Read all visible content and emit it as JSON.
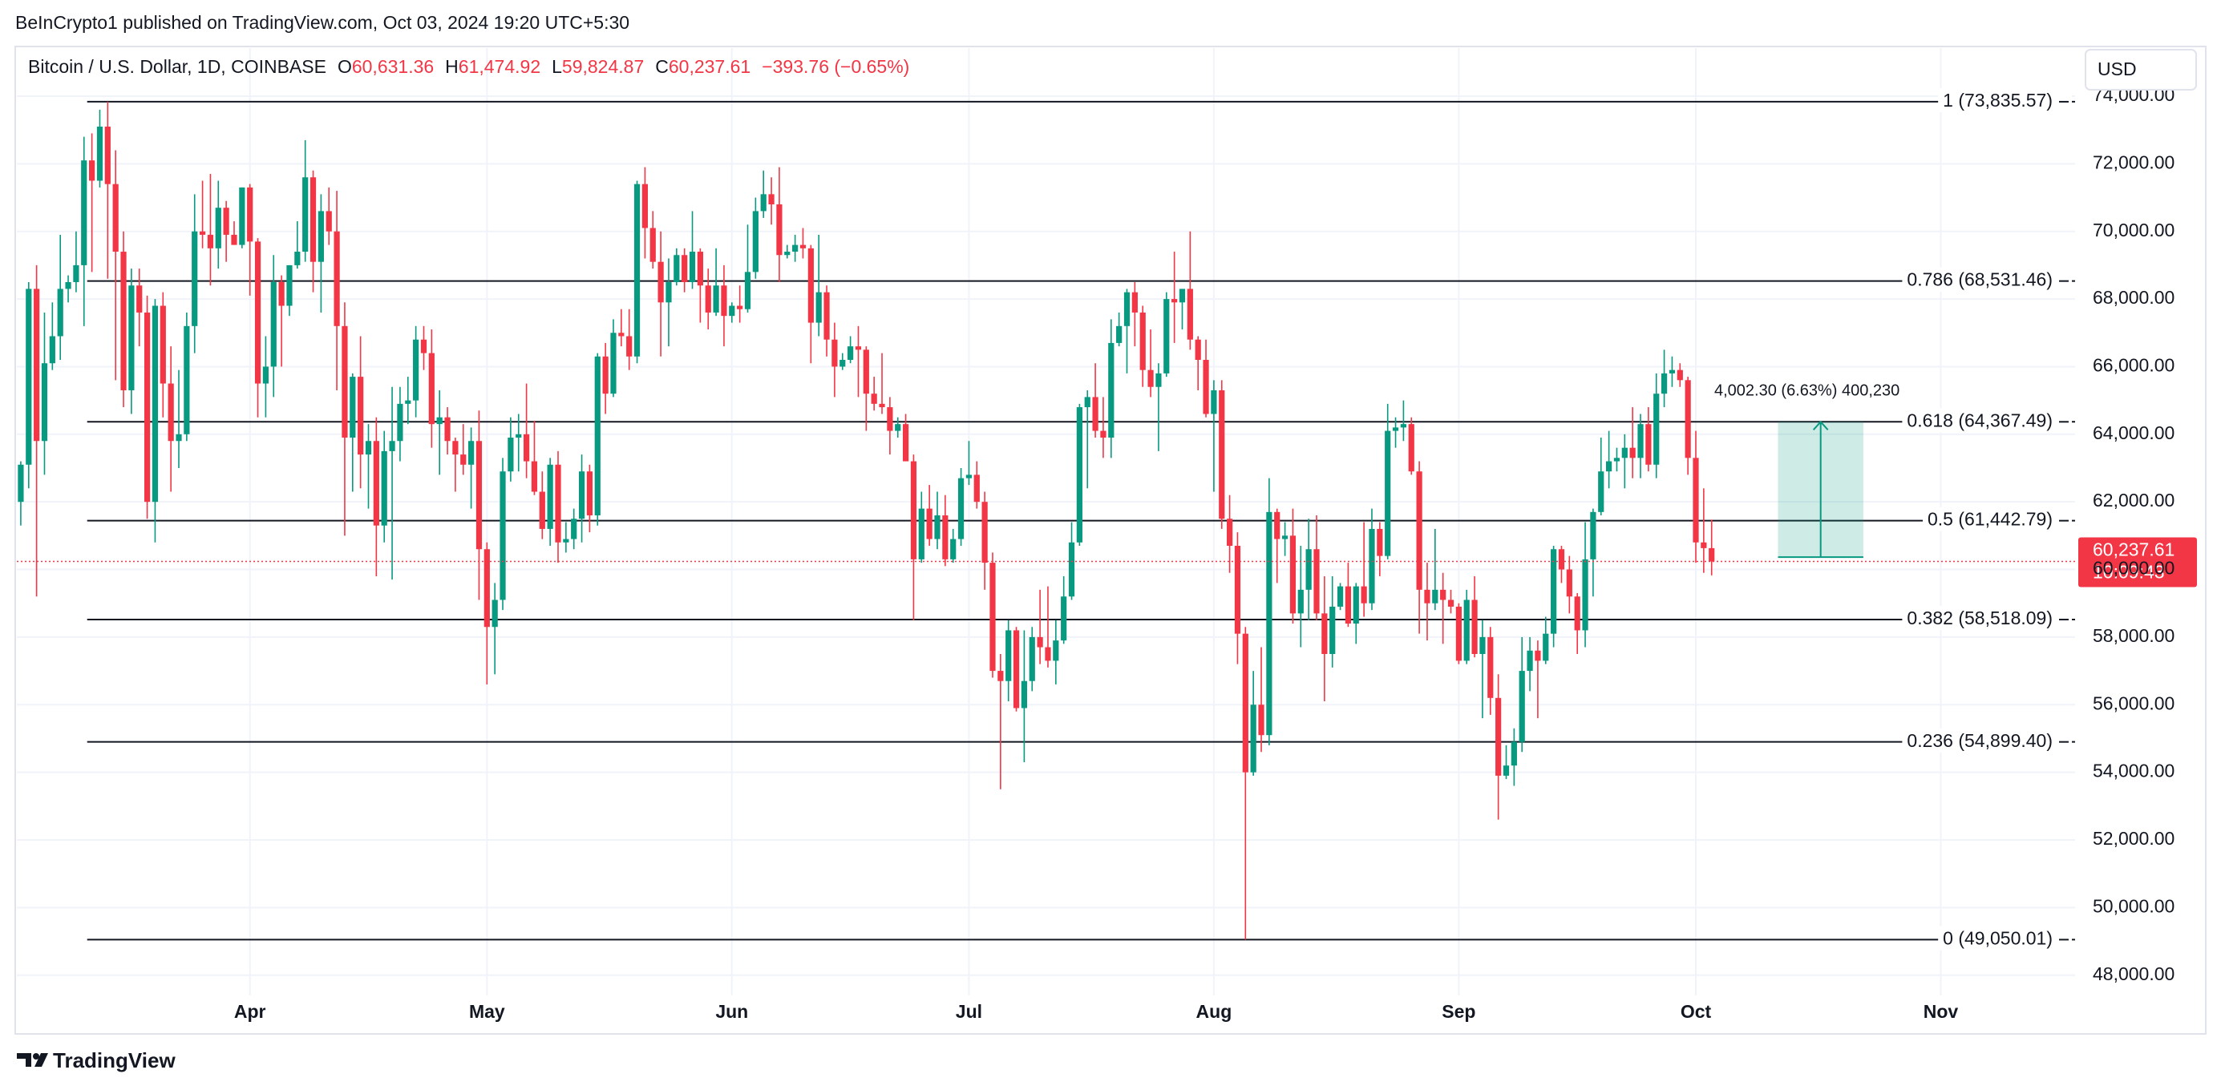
{
  "header": {
    "text": "BeInCrypto1 published on TradingView.com, Oct 03, 2024 19:20 UTC+5:30"
  },
  "chart_data": {
    "type": "candlestick",
    "symbol": "Bitcoin / U.S. Dollar, 1D, COINBASE",
    "ohlc_legend": [
      {
        "key": "O",
        "value": "60,631.36"
      },
      {
        "key": "H",
        "value": "61,474.92"
      },
      {
        "key": "L",
        "value": "59,824.87"
      },
      {
        "key": "C",
        "value": "60,237.61"
      }
    ],
    "change": "−393.76 (−0.65%)",
    "currency": "USD",
    "up_color": "#089981",
    "down_color": "#f23645",
    "grid": true,
    "xlim": [
      -0.5,
      260
    ],
    "xticks": [
      {
        "value": 29,
        "label": "Apr"
      },
      {
        "value": 59,
        "label": "May"
      },
      {
        "value": 90,
        "label": "Jun"
      },
      {
        "value": 120,
        "label": "Jul"
      },
      {
        "value": 151,
        "label": "Aug"
      },
      {
        "value": 182,
        "label": "Sep"
      },
      {
        "value": 212,
        "label": "Oct"
      },
      {
        "value": 243,
        "label": "Nov"
      }
    ],
    "ylim": [
      47400,
      74000
    ],
    "yticks": [
      {
        "value": 48000,
        "label": "48,000.00"
      },
      {
        "value": 50000,
        "label": "50,000.00"
      },
      {
        "value": 52000,
        "label": "52,000.00"
      },
      {
        "value": 54000,
        "label": "54,000.00"
      },
      {
        "value": 56000,
        "label": "56,000.00"
      },
      {
        "value": 58000,
        "label": "58,000.00"
      },
      {
        "value": 60000,
        "label": "60,000.00"
      },
      {
        "value": 62000,
        "label": "62,000.00"
      },
      {
        "value": 64000,
        "label": "64,000.00"
      },
      {
        "value": 66000,
        "label": "66,000.00"
      },
      {
        "value": 68000,
        "label": "68,000.00"
      },
      {
        "value": 70000,
        "label": "70,000.00"
      },
      {
        "value": 72000,
        "label": "72,000.00"
      },
      {
        "value": 74000,
        "label": "74,000.00"
      }
    ],
    "candles": [
      [
        62000,
        63200,
        61300,
        63100
      ],
      [
        63100,
        68500,
        62400,
        68300
      ],
      [
        68300,
        69000,
        59200,
        63800
      ],
      [
        63800,
        67600,
        62800,
        66100
      ],
      [
        66100,
        67900,
        65900,
        66900
      ],
      [
        66900,
        69900,
        66200,
        68300
      ],
      [
        68300,
        68700,
        67900,
        68500
      ],
      [
        68500,
        70000,
        68200,
        69000
      ],
      [
        69000,
        72800,
        67200,
        72100
      ],
      [
        72100,
        72900,
        68800,
        71500
      ],
      [
        71500,
        73600,
        71300,
        73100
      ],
      [
        73100,
        73835.57,
        68600,
        71400
      ],
      [
        71400,
        72400,
        65600,
        69400
      ],
      [
        69400,
        70000,
        64800,
        65300
      ],
      [
        65300,
        68900,
        64600,
        68400
      ],
      [
        68400,
        68900,
        66600,
        67600
      ],
      [
        67600,
        68100,
        61500,
        62000
      ],
      [
        62000,
        68000,
        60800,
        67800
      ],
      [
        67800,
        68200,
        64500,
        65500
      ],
      [
        65500,
        66600,
        62300,
        63800
      ],
      [
        63800,
        65900,
        63000,
        64000
      ],
      [
        64000,
        67600,
        63800,
        67200
      ],
      [
        67200,
        71100,
        66400,
        70000
      ],
      [
        70000,
        71500,
        69500,
        69900
      ],
      [
        69900,
        71700,
        68400,
        69500
      ],
      [
        69500,
        71500,
        68900,
        70700
      ],
      [
        70700,
        70900,
        69100,
        69900
      ],
      [
        69900,
        70300,
        69600,
        69600
      ],
      [
        69600,
        71300,
        69500,
        71300
      ],
      [
        71300,
        71400,
        68100,
        69700
      ],
      [
        69700,
        69800,
        64500,
        65500
      ],
      [
        65500,
        66900,
        64500,
        66000
      ],
      [
        66000,
        69300,
        65100,
        68500
      ],
      [
        68500,
        68700,
        66000,
        67800
      ],
      [
        67800,
        69000,
        67500,
        69000
      ],
      [
        69000,
        70300,
        68900,
        69400
      ],
      [
        69400,
        72700,
        69100,
        71600
      ],
      [
        71600,
        71800,
        68200,
        69100
      ],
      [
        69100,
        71100,
        67600,
        70600
      ],
      [
        70600,
        71300,
        69600,
        70000
      ],
      [
        70000,
        71200,
        65300,
        67200
      ],
      [
        67200,
        67900,
        61000,
        63900
      ],
      [
        63900,
        65800,
        62300,
        65700
      ],
      [
        65700,
        66900,
        62400,
        63400
      ],
      [
        63400,
        64300,
        61800,
        63800
      ],
      [
        63800,
        64500,
        59800,
        61300
      ],
      [
        61300,
        64100,
        60800,
        63500
      ],
      [
        63500,
        65400,
        59700,
        63800
      ],
      [
        63800,
        65400,
        63200,
        64900
      ],
      [
        64900,
        65700,
        64300,
        65000
      ],
      [
        65000,
        67200,
        64500,
        66800
      ],
      [
        66800,
        67200,
        65900,
        66400
      ],
      [
        66400,
        67100,
        63600,
        64300
      ],
      [
        64300,
        65300,
        62800,
        64500
      ],
      [
        64500,
        64800,
        63400,
        63800
      ],
      [
        63800,
        63900,
        62300,
        63400
      ],
      [
        63400,
        64300,
        62800,
        63100
      ],
      [
        63100,
        64200,
        61800,
        63800
      ],
      [
        63800,
        64700,
        59100,
        60600
      ],
      [
        60600,
        60800,
        56600,
        58300
      ],
      [
        58300,
        59600,
        56900,
        59100
      ],
      [
        59100,
        63300,
        58800,
        62900
      ],
      [
        62900,
        64500,
        62600,
        63900
      ],
      [
        63900,
        64600,
        62900,
        64000
      ],
      [
        64000,
        65500,
        62700,
        63200
      ],
      [
        63200,
        64400,
        62200,
        62300
      ],
      [
        62300,
        62900,
        60900,
        61200
      ],
      [
        61200,
        63300,
        60700,
        63100
      ],
      [
        63100,
        63500,
        60200,
        60800
      ],
      [
        60800,
        61400,
        60500,
        60900
      ],
      [
        60900,
        61800,
        60600,
        61500
      ],
      [
        61500,
        63400,
        60800,
        62900
      ],
      [
        62900,
        63100,
        61100,
        61600
      ],
      [
        61600,
        66400,
        61300,
        66300
      ],
      [
        66300,
        66700,
        64600,
        65200
      ],
      [
        65200,
        67400,
        65100,
        67000
      ],
      [
        67000,
        67700,
        66600,
        66900
      ],
      [
        66900,
        67700,
        65900,
        66300
      ],
      [
        66300,
        71500,
        66100,
        71400
      ],
      [
        71400,
        71900,
        69200,
        70100
      ],
      [
        70100,
        70600,
        68900,
        69100
      ],
      [
        69100,
        70000,
        66300,
        67900
      ],
      [
        67900,
        69200,
        66600,
        68500
      ],
      [
        68500,
        69500,
        68400,
        69300
      ],
      [
        69300,
        69500,
        68200,
        68500
      ],
      [
        68500,
        70600,
        68300,
        69400
      ],
      [
        69400,
        69500,
        67300,
        68400
      ],
      [
        68400,
        68900,
        67100,
        67600
      ],
      [
        67600,
        69500,
        67500,
        68400
      ],
      [
        68400,
        69000,
        66600,
        67500
      ],
      [
        67500,
        67900,
        67300,
        67800
      ],
      [
        67800,
        68400,
        67300,
        67700
      ],
      [
        67700,
        70200,
        67600,
        68800
      ],
      [
        68800,
        71000,
        68600,
        70600
      ],
      [
        70600,
        71800,
        70400,
        71100
      ],
      [
        71100,
        71600,
        70200,
        70800
      ],
      [
        70800,
        71900,
        68500,
        69300
      ],
      [
        69300,
        69600,
        69200,
        69400
      ],
      [
        69400,
        69900,
        69100,
        69600
      ],
      [
        69600,
        70100,
        69200,
        69500
      ],
      [
        69500,
        69600,
        66100,
        67300
      ],
      [
        67300,
        69900,
        66900,
        68200
      ],
      [
        68200,
        68400,
        66300,
        66800
      ],
      [
        66800,
        67300,
        65100,
        66000
      ],
      [
        66000,
        66400,
        65900,
        66200
      ],
      [
        66200,
        66900,
        66100,
        66600
      ],
      [
        66600,
        67200,
        65100,
        66500
      ],
      [
        66500,
        66600,
        64100,
        65200
      ],
      [
        65200,
        65700,
        64700,
        64900
      ],
      [
        64900,
        66400,
        64600,
        64800
      ],
      [
        64800,
        65100,
        63400,
        64100
      ],
      [
        64100,
        64500,
        63900,
        64300
      ],
      [
        64300,
        64600,
        63200,
        63200
      ],
      [
        63200,
        63400,
        58500,
        60300
      ],
      [
        60300,
        62300,
        60200,
        61800
      ],
      [
        61800,
        62500,
        60700,
        60900
      ],
      [
        60900,
        62300,
        60600,
        61600
      ],
      [
        61600,
        62200,
        60100,
        60300
      ],
      [
        60300,
        61200,
        60200,
        60900
      ],
      [
        60900,
        63000,
        60700,
        62700
      ],
      [
        62700,
        63800,
        62500,
        62800
      ],
      [
        62800,
        63200,
        61800,
        62000
      ],
      [
        62000,
        62300,
        59400,
        60200
      ],
      [
        60200,
        60500,
        56800,
        57000
      ],
      [
        57000,
        57500,
        53500,
        56700
      ],
      [
        56700,
        58500,
        56100,
        58200
      ],
      [
        58200,
        58300,
        55800,
        55900
      ],
      [
        55900,
        58200,
        54300,
        56700
      ],
      [
        56700,
        58300,
        56400,
        58000
      ],
      [
        58000,
        59400,
        57200,
        57700
      ],
      [
        57700,
        59500,
        57100,
        57300
      ],
      [
        57300,
        58500,
        56600,
        57900
      ],
      [
        57900,
        59800,
        57800,
        59200
      ],
      [
        59200,
        61400,
        59100,
        60800
      ],
      [
        60800,
        64900,
        60700,
        64800
      ],
      [
        64800,
        65300,
        62400,
        65100
      ],
      [
        65100,
        66100,
        63900,
        64100
      ],
      [
        64100,
        65100,
        63300,
        63900
      ],
      [
        63900,
        67400,
        63300,
        66700
      ],
      [
        66700,
        67600,
        66600,
        67200
      ],
      [
        67200,
        68300,
        65800,
        68200
      ],
      [
        68200,
        68500,
        66600,
        67600
      ],
      [
        67600,
        67800,
        65400,
        65900
      ],
      [
        65900,
        67100,
        65100,
        65400
      ],
      [
        65400,
        66100,
        63500,
        65800
      ],
      [
        65800,
        68200,
        65700,
        68000
      ],
      [
        68000,
        69400,
        66700,
        67900
      ],
      [
        67900,
        68300,
        67100,
        68300
      ],
      [
        68300,
        70000,
        66500,
        66800
      ],
      [
        66800,
        66900,
        65300,
        66200
      ],
      [
        66200,
        66800,
        64500,
        64600
      ],
      [
        64600,
        65600,
        62300,
        65300
      ],
      [
        65300,
        65600,
        61200,
        61500
      ],
      [
        61500,
        62200,
        59900,
        60700
      ],
      [
        60700,
        61100,
        57200,
        58100
      ],
      [
        58100,
        58300,
        49050.01,
        54000
      ],
      [
        54000,
        57000,
        53900,
        56000
      ],
      [
        56000,
        57700,
        54600,
        55100
      ],
      [
        55100,
        62700,
        54800,
        61700
      ],
      [
        61700,
        61800,
        59600,
        60900
      ],
      [
        60900,
        61400,
        60400,
        61000
      ],
      [
        61000,
        61800,
        58400,
        58700
      ],
      [
        58700,
        60700,
        57700,
        59400
      ],
      [
        59400,
        61500,
        58500,
        60600
      ],
      [
        60600,
        61600,
        58500,
        58700
      ],
      [
        58700,
        59800,
        56100,
        57500
      ],
      [
        57500,
        59800,
        57100,
        58900
      ],
      [
        58900,
        59600,
        58800,
        59500
      ],
      [
        59500,
        60200,
        58300,
        58400
      ],
      [
        58400,
        59600,
        57800,
        59500
      ],
      [
        59500,
        61400,
        58600,
        59000
      ],
      [
        59000,
        61800,
        58800,
        61200
      ],
      [
        61200,
        61400,
        59800,
        60400
      ],
      [
        60400,
        64900,
        60300,
        64100
      ],
      [
        64100,
        64500,
        63600,
        64200
      ],
      [
        64200,
        65000,
        63800,
        64300
      ],
      [
        64300,
        64500,
        62800,
        62900
      ],
      [
        62900,
        63200,
        58100,
        59400
      ],
      [
        59400,
        60200,
        57900,
        59000
      ],
      [
        59000,
        61200,
        58800,
        59400
      ],
      [
        59400,
        59900,
        57800,
        59100
      ],
      [
        59100,
        59400,
        58700,
        58900
      ],
      [
        58900,
        59000,
        57200,
        57300
      ],
      [
        57300,
        59400,
        57200,
        59100
      ],
      [
        59100,
        59800,
        57400,
        57500
      ],
      [
        57500,
        58500,
        55600,
        58000
      ],
      [
        58000,
        58300,
        55700,
        56200
      ],
      [
        56200,
        56900,
        52600,
        53900
      ],
      [
        53900,
        54800,
        53800,
        54200
      ],
      [
        54200,
        55300,
        53600,
        54900
      ],
      [
        54900,
        58000,
        54600,
        57000
      ],
      [
        57000,
        58000,
        56400,
        57600
      ],
      [
        57600,
        57900,
        55600,
        57300
      ],
      [
        57300,
        58600,
        57200,
        58100
      ],
      [
        58100,
        60700,
        57700,
        60600
      ],
      [
        60600,
        60700,
        59600,
        60000
      ],
      [
        60000,
        60400,
        58700,
        59200
      ],
      [
        59200,
        59300,
        57500,
        58200
      ],
      [
        58200,
        61400,
        57700,
        60300
      ],
      [
        60300,
        61800,
        59200,
        61700
      ],
      [
        61700,
        63900,
        61600,
        62900
      ],
      [
        62900,
        64100,
        62400,
        63200
      ],
      [
        63200,
        63600,
        62900,
        63300
      ],
      [
        63300,
        64000,
        62400,
        63600
      ],
      [
        63600,
        64800,
        62700,
        63300
      ],
      [
        63300,
        64600,
        62700,
        64300
      ],
      [
        64300,
        64800,
        62900,
        63100
      ],
      [
        63100,
        65800,
        62700,
        65200
      ],
      [
        65200,
        66500,
        64800,
        65800
      ],
      [
        65800,
        66300,
        65400,
        65900
      ],
      [
        65900,
        66100,
        65400,
        65600
      ],
      [
        65600,
        65700,
        62800,
        63300
      ],
      [
        63300,
        64100,
        60200,
        60800
      ],
      [
        60800,
        62400,
        59900,
        60631.36
      ],
      [
        60631.36,
        61474.92,
        59824.87,
        60237.61
      ]
    ],
    "last_price": {
      "value": 60237.61,
      "label": "60,237.61",
      "countdown": "10:09:43",
      "color": "#f23645"
    },
    "fib": {
      "start": 8.4,
      "color": "#131722",
      "levels": [
        {
          "value": 73835.57,
          "label": "1 (73,835.57)"
        },
        {
          "value": 68531.46,
          "label": "0.786 (68,531.46)"
        },
        {
          "value": 64367.49,
          "label": "0.618 (64,367.49)"
        },
        {
          "value": 61442.79,
          "label": "0.5 (61,442.79)"
        },
        {
          "value": 58518.09,
          "label": "0.382 (58,518.09)"
        },
        {
          "value": 54899.4,
          "label": "0.236 (54,899.40)"
        },
        {
          "value": 49050.01,
          "label": "0 (49,050.01)"
        }
      ]
    },
    "measure": {
      "x": [
        222.4,
        233.2
      ],
      "from": 60365,
      "to": 64367.3,
      "label": "4,002.30 (6.63%) 400,230",
      "color": "#089981"
    }
  },
  "footer": {
    "brand": "TradingView"
  }
}
